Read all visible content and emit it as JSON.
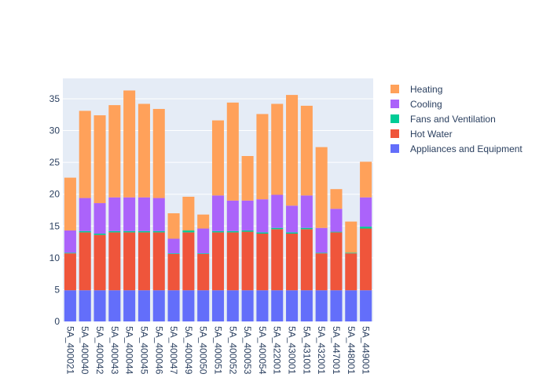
{
  "chart_data": {
    "type": "bar",
    "barmode": "stack",
    "title": "",
    "xlabel": "",
    "ylabel": "",
    "ylim": [
      0,
      38.2
    ],
    "yticks": [
      0,
      5,
      10,
      15,
      20,
      25,
      30,
      35
    ],
    "grid": true,
    "background": "#e5ecf6",
    "legend_position": "right",
    "categories": [
      "5A_400021",
      "5A_400040",
      "5A_400042",
      "5A_400043",
      "5A_400044",
      "5A_400045",
      "5A_400046",
      "5A_400047",
      "5A_400049",
      "5A_400050",
      "5A_400051",
      "5A_400052",
      "5A_400053",
      "5A_400054",
      "5A_422001",
      "5A_430001",
      "5A_431001",
      "5A_432001",
      "5A_447001",
      "5A_448001",
      "5A_449001"
    ],
    "series": [
      {
        "name": "Appliances and Equipment",
        "color": "#636efa",
        "values": [
          4.9,
          4.9,
          4.9,
          4.9,
          4.9,
          4.9,
          4.9,
          4.9,
          4.9,
          4.9,
          4.9,
          4.9,
          4.9,
          4.9,
          4.9,
          4.9,
          4.9,
          4.9,
          4.9,
          4.9,
          4.9
        ]
      },
      {
        "name": "Hot Water",
        "color": "#ef553b",
        "values": [
          5.8,
          9.1,
          8.7,
          9.1,
          9.1,
          9.1,
          9.1,
          5.7,
          9.1,
          5.7,
          9.1,
          9.1,
          9.2,
          8.9,
          9.6,
          8.9,
          9.6,
          5.8,
          9.1,
          5.8,
          9.7
        ]
      },
      {
        "name": "Fans and Ventilation",
        "color": "#00cc96",
        "values": [
          0.1,
          0.2,
          0.2,
          0.2,
          0.2,
          0.2,
          0.2,
          0.1,
          0.3,
          0.1,
          0.2,
          0.2,
          0.2,
          0.2,
          0.2,
          0.2,
          0.2,
          0.1,
          0.1,
          0.1,
          0.3
        ]
      },
      {
        "name": "Cooling",
        "color": "#ab63fa",
        "values": [
          3.5,
          5.2,
          4.8,
          5.3,
          5.3,
          5.3,
          5.2,
          2.3,
          0.0,
          3.9,
          5.6,
          4.8,
          4.7,
          5.2,
          5.2,
          4.2,
          5.1,
          3.9,
          3.6,
          0.0,
          4.6
        ]
      },
      {
        "name": "Heating",
        "color": "#ffa15a",
        "values": [
          8.3,
          13.7,
          13.8,
          14.5,
          16.8,
          14.7,
          14.0,
          4.0,
          5.3,
          2.2,
          11.8,
          15.4,
          7.0,
          13.4,
          14.3,
          17.4,
          14.1,
          12.7,
          3.1,
          4.9,
          5.6
        ]
      }
    ],
    "legend_order": [
      "Heating",
      "Cooling",
      "Fans and Ventilation",
      "Hot Water",
      "Appliances and Equipment"
    ]
  }
}
